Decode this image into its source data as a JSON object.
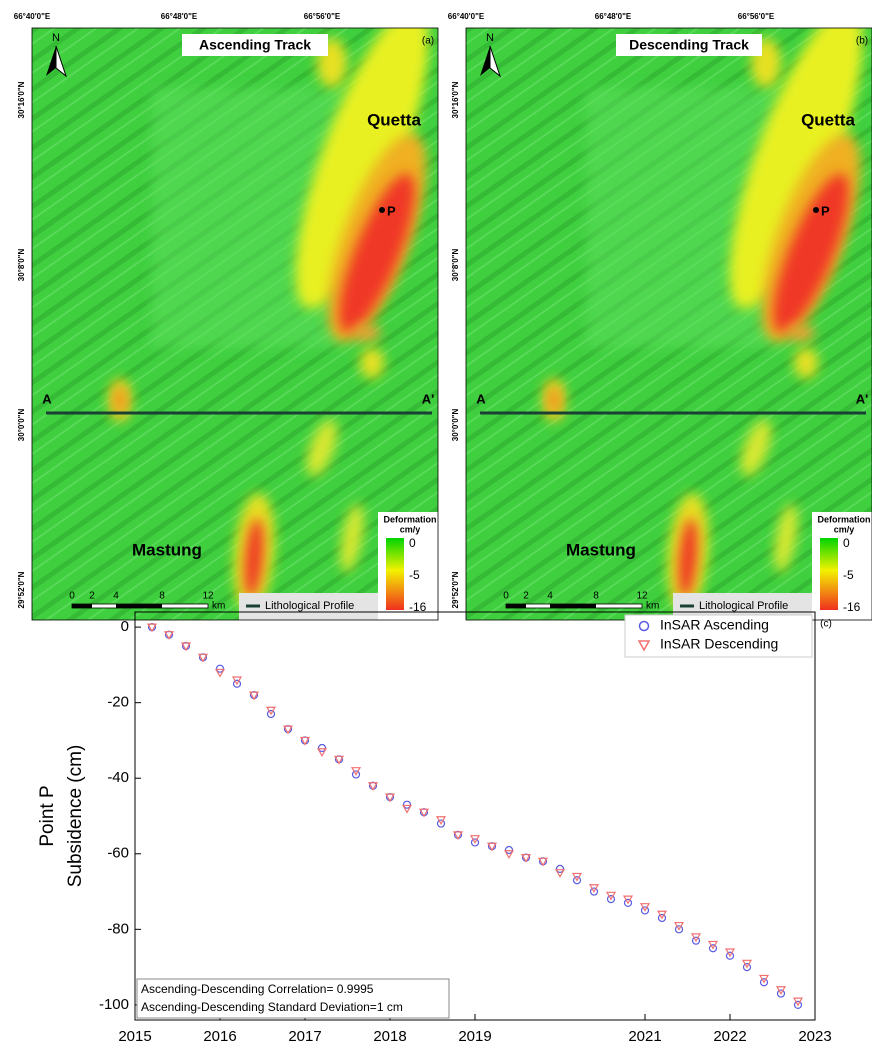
{
  "maps": {
    "lon_labels": [
      "66°40'0\"E",
      "66°48'0\"E",
      "66°56'0\"E"
    ],
    "lat_labels": [
      "30°16'0\"N",
      "30°8'0\"N",
      "30°0'0\"N",
      "29°52'0\"N"
    ],
    "north": "N",
    "panels": [
      {
        "title": "Ascending Track",
        "tag": "(a)",
        "city": "Quetta",
        "point": "P",
        "profile_start": "A",
        "profile_end": "A'",
        "town": "Mastung",
        "scale": [
          0,
          2,
          4,
          8,
          12
        ],
        "scale_unit": "km",
        "profile_legend": "Lithological Profile",
        "legend_title": "Deformation",
        "legend_unit": "cm/y",
        "legend_ticks": [
          0,
          -5,
          -16
        ]
      },
      {
        "title": "Descending Track",
        "tag": "(b)",
        "city": "Quetta",
        "point": "P",
        "profile_start": "A",
        "profile_end": "A'",
        "town": "Mastung",
        "scale": [
          0,
          2,
          4,
          8,
          12
        ],
        "scale_unit": "km",
        "profile_legend": "Lithological Profile",
        "legend_title": "Deformation",
        "legend_unit": "cm/y",
        "legend_ticks": [
          0,
          -5,
          -16
        ]
      }
    ]
  },
  "chart_data": {
    "type": "scatter",
    "tag": "(c)",
    "y_label": [
      "Point P",
      "Subsidence (cm)"
    ],
    "annotations": [
      "Ascending-Descending Correlation= 0.9995",
      "Ascending-Descending Standard Deviation=1 cm"
    ],
    "x": [
      2015.2,
      2015.4,
      2015.6,
      2015.8,
      2016.0,
      2016.2,
      2016.4,
      2016.6,
      2016.8,
      2017.0,
      2017.2,
      2017.4,
      2017.6,
      2017.8,
      2018.0,
      2018.2,
      2018.4,
      2018.6,
      2018.8,
      2019.0,
      2019.2,
      2019.4,
      2019.6,
      2019.8,
      2020.0,
      2020.2,
      2020.4,
      2020.6,
      2020.8,
      2021.0,
      2021.2,
      2021.4,
      2021.6,
      2021.8,
      2022.0,
      2022.2,
      2022.4,
      2022.6,
      2022.8
    ],
    "series": [
      {
        "name": "InSAR Ascending",
        "color": "#5a5ae0",
        "marker": "circle",
        "values": [
          0,
          -2,
          -5,
          -8,
          -11,
          -15,
          -18,
          -23,
          -27,
          -30,
          -32,
          -35,
          -39,
          -42,
          -45,
          -47,
          -49,
          -52,
          -55,
          -57,
          -58,
          -59,
          -61,
          -62,
          -64,
          -67,
          -70,
          -72,
          -73,
          -75,
          -77,
          -80,
          -83,
          -85,
          -87,
          -90,
          -94,
          -97,
          -100
        ]
      },
      {
        "name": "InSAR Descending",
        "color": "#f07070",
        "marker": "triangle",
        "values": [
          0,
          -2,
          -5,
          -8,
          -12,
          -14,
          -18,
          -22,
          -27,
          -30,
          -33,
          -35,
          -38,
          -42,
          -45,
          -48,
          -49,
          -51,
          -55,
          -56,
          -58,
          -60,
          -61,
          -62,
          -65,
          -66,
          -69,
          -71,
          -72,
          -74,
          -76,
          -79,
          -82,
          -84,
          -86,
          -89,
          -93,
          -96,
          -99
        ]
      }
    ],
    "xlim": [
      2015,
      2023
    ],
    "xticks": [
      2015,
      2016,
      2017,
      2018,
      2019,
      2021,
      2022,
      2023
    ],
    "ylim": [
      -104,
      4
    ],
    "yticks": [
      -100,
      -80,
      -60,
      -40,
      -20,
      0
    ],
    "legend": "upper right"
  }
}
